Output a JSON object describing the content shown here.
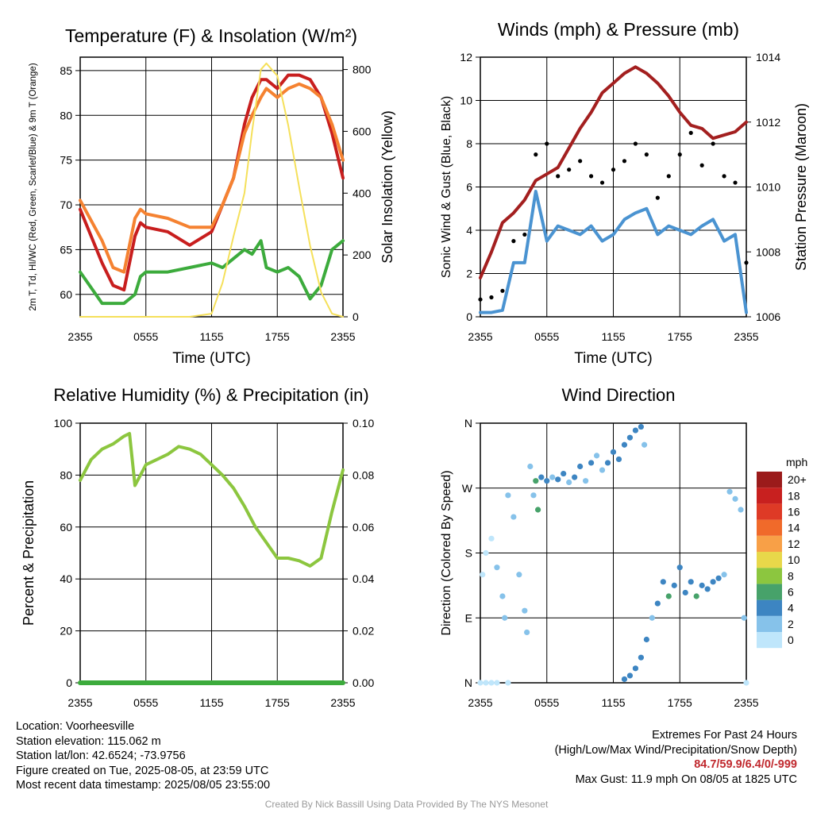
{
  "chart_data": [
    {
      "type": "line",
      "title": "Temperature (F) & Insolation (W/m²)",
      "xlabel": "Time (UTC)",
      "ylabel_left": "2m T, Td, HI/WC (Red, Green, Scarlet/Blue) & 9m T (Orange)",
      "ylabel_right": "Solar Insolation (Yellow)",
      "x_ticks": [
        "2355",
        "0555",
        "1155",
        "1755",
        "2355"
      ],
      "ylim": [
        57.5,
        86.5
      ],
      "y_ticks": [
        60,
        65,
        70,
        75,
        80,
        85
      ],
      "y2lim": [
        0,
        840
      ],
      "y2_ticks": [
        0,
        200,
        400,
        600,
        800
      ],
      "x_hours": [
        0,
        2,
        3,
        4,
        5,
        5.5,
        6,
        8,
        10,
        12,
        13,
        14,
        15,
        15.7,
        16.5,
        17,
        18,
        19,
        20,
        21,
        22,
        23,
        24
      ],
      "series": [
        {
          "color": "#c81e1e",
          "values": [
            69.5,
            63.5,
            61,
            60.5,
            66.5,
            68,
            67.5,
            67,
            65.5,
            67,
            70,
            73,
            79,
            82,
            84,
            84,
            83,
            84.5,
            84.5,
            84,
            82,
            78,
            73
          ]
        },
        {
          "color": "#f58231",
          "values": [
            70.5,
            66,
            63,
            62.5,
            68.5,
            69.5,
            69,
            68.5,
            67.5,
            67.5,
            70,
            73,
            78,
            80,
            82,
            83,
            82,
            83,
            83.5,
            83,
            82,
            79,
            75
          ]
        },
        {
          "color": "#3cab3c",
          "values": [
            62.5,
            59,
            59,
            59,
            60,
            62,
            62.5,
            62.5,
            63,
            63.5,
            63,
            64,
            65,
            64.5,
            66,
            63,
            62.5,
            63,
            62,
            59.5,
            61,
            65,
            66
          ]
        },
        {
          "color": "#f5e05a",
          "values": [
            0,
            0,
            0,
            0,
            0,
            0,
            0,
            0,
            0,
            10,
            110,
            260,
            400,
            600,
            800,
            820,
            780,
            620,
            420,
            230,
            80,
            10,
            0
          ]
        }
      ]
    },
    {
      "type": "line",
      "title": "Winds (mph) & Pressure (mb)",
      "xlabel": "Time (UTC)",
      "ylabel_left": "Sonic Wind & Gust (Blue, Black)",
      "ylabel_right": "Station Pressure (Maroon)",
      "x_ticks": [
        "2355",
        "0555",
        "1155",
        "1755",
        "2355"
      ],
      "ylim": [
        0,
        12
      ],
      "y_ticks": [
        0,
        2,
        4,
        6,
        8,
        10,
        12
      ],
      "y2lim": [
        1006,
        1014
      ],
      "y2_ticks": [
        1006,
        1008,
        1010,
        1012,
        1014
      ],
      "x_hours": [
        0,
        1,
        2,
        3,
        4,
        5,
        6,
        7,
        8,
        9,
        10,
        11,
        12,
        13,
        14,
        15,
        16,
        17,
        18,
        19,
        20,
        21,
        22,
        23,
        24
      ],
      "series": [
        {
          "color": "#4a93d1",
          "values": [
            0.2,
            0.2,
            0.3,
            2.5,
            2.5,
            5.8,
            3.5,
            4.2,
            4,
            3.8,
            4.2,
            3.5,
            3.8,
            4.5,
            4.8,
            5,
            3.8,
            4.2,
            4,
            3.8,
            4.2,
            4.5,
            3.5,
            3.8,
            0.2
          ]
        },
        {
          "color": "#a31f1f",
          "values": [
            1007.2,
            1008,
            1008.9,
            1009.2,
            1009.6,
            1010.2,
            1010.4,
            1010.6,
            1011.2,
            1011.8,
            1012.3,
            1012.9,
            1013.2,
            1013.5,
            1013.7,
            1013.5,
            1013.2,
            1012.8,
            1012.3,
            1011.9,
            1011.8,
            1011.5,
            1011.6,
            1011.7,
            1012
          ]
        },
        {
          "color": "#000000",
          "style": "points",
          "values": [
            0.8,
            0.9,
            1.2,
            3.5,
            3.8,
            7.5,
            8,
            6.5,
            6.8,
            7.2,
            6.5,
            6.2,
            6.8,
            7.2,
            8,
            7.5,
            5.5,
            6.5,
            7.5,
            8.5,
            7,
            8,
            6.5,
            6.2,
            2.5
          ]
        }
      ],
      "annotations": [
        "Max gust 11.9 mph at 1825 UTC"
      ]
    },
    {
      "type": "line",
      "title": "Relative Humidity (%) & Precipitation (in)",
      "xlabel": "",
      "ylabel_left": "Percent & Precipitation",
      "x_ticks": [
        "2355",
        "0555",
        "1155",
        "1755",
        "2355"
      ],
      "ylim": [
        0,
        100
      ],
      "y_ticks": [
        0,
        20,
        40,
        60,
        80,
        100
      ],
      "y2lim": [
        0,
        0.1
      ],
      "y2_ticks": [
        "0.00",
        "0.02",
        "0.04",
        "0.06",
        "0.08",
        "0.10"
      ],
      "x_hours": [
        0,
        1,
        2,
        3,
        4,
        4.5,
        5,
        6,
        7,
        8,
        9,
        10,
        11,
        12,
        13,
        14,
        15,
        16,
        17,
        18,
        19,
        20,
        21,
        22,
        23,
        24
      ],
      "series": [
        {
          "color": "#8cc63f",
          "values": [
            78,
            86,
            90,
            92,
            95,
            96,
            76,
            84,
            86,
            88,
            91,
            90,
            88,
            84,
            80,
            75,
            68,
            60,
            54,
            48,
            48,
            47,
            45,
            48,
            66,
            82
          ]
        },
        {
          "color": "#3cab3c",
          "values": [
            0,
            0,
            0,
            0,
            0,
            0,
            0,
            0,
            0,
            0,
            0,
            0,
            0,
            0,
            0,
            0,
            0,
            0,
            0,
            0,
            0,
            0,
            0,
            0,
            0,
            0
          ]
        }
      ]
    },
    {
      "type": "scatter",
      "title": "Wind Direction",
      "ylabel": "Direction (Colored By Speed)",
      "x_ticks": [
        "2355",
        "0555",
        "1155",
        "1755",
        "2355"
      ],
      "y_ticks": [
        "N",
        "E",
        "S",
        "W",
        "N"
      ],
      "ylim": [
        0,
        360
      ],
      "legend_title": "mph",
      "legend_labels": [
        "0",
        "2",
        "4",
        "6",
        "8",
        "10",
        "12",
        "14",
        "16",
        "18",
        "20+"
      ],
      "legend_colors": [
        "#bfe6fb",
        "#86c2ea",
        "#3d85c2",
        "#47a26a",
        "#8cc63f",
        "#e8d84a",
        "#f8a047",
        "#f06a2a",
        "#de3a26",
        "#c8201f",
        "#9b1b1b"
      ],
      "points": [
        {
          "hour": 0,
          "dir": 0,
          "mph": 0
        },
        {
          "hour": 0.5,
          "dir": 0,
          "mph": 0
        },
        {
          "hour": 1,
          "dir": 0,
          "mph": 0.5
        },
        {
          "hour": 1.5,
          "dir": 0,
          "mph": 0.5
        },
        {
          "hour": 2.5,
          "dir": 0,
          "mph": 0.5
        },
        {
          "hour": 0.2,
          "dir": 150,
          "mph": 0.5
        },
        {
          "hour": 0.5,
          "dir": 180,
          "mph": 0.8
        },
        {
          "hour": 1,
          "dir": 200,
          "mph": 0.8
        },
        {
          "hour": 1.5,
          "dir": 160,
          "mph": 1.2
        },
        {
          "hour": 2,
          "dir": 120,
          "mph": 1.2
        },
        {
          "hour": 2.2,
          "dir": 90,
          "mph": 1.5
        },
        {
          "hour": 2.5,
          "dir": 260,
          "mph": 1.5
        },
        {
          "hour": 3,
          "dir": 230,
          "mph": 1.8
        },
        {
          "hour": 3.5,
          "dir": 150,
          "mph": 2
        },
        {
          "hour": 4,
          "dir": 100,
          "mph": 2
        },
        {
          "hour": 4.2,
          "dir": 70,
          "mph": 1.5
        },
        {
          "hour": 4.5,
          "dir": 300,
          "mph": 2.2
        },
        {
          "hour": 4.8,
          "dir": 260,
          "mph": 2.5
        },
        {
          "hour": 5,
          "dir": 280,
          "mph": 6
        },
        {
          "hour": 5.2,
          "dir": 240,
          "mph": 6
        },
        {
          "hour": 5.5,
          "dir": 285,
          "mph": 3
        },
        {
          "hour": 6,
          "dir": 280,
          "mph": 4
        },
        {
          "hour": 6.5,
          "dir": 285,
          "mph": 2.5
        },
        {
          "hour": 7,
          "dir": 282,
          "mph": 4
        },
        {
          "hour": 7.5,
          "dir": 290,
          "mph": 3
        },
        {
          "hour": 8,
          "dir": 278,
          "mph": 2.5
        },
        {
          "hour": 8.5,
          "dir": 285,
          "mph": 4
        },
        {
          "hour": 9,
          "dir": 300,
          "mph": 3
        },
        {
          "hour": 9.5,
          "dir": 280,
          "mph": 2.2
        },
        {
          "hour": 10,
          "dir": 305,
          "mph": 3
        },
        {
          "hour": 10.5,
          "dir": 315,
          "mph": 2
        },
        {
          "hour": 11,
          "dir": 295,
          "mph": 2.5
        },
        {
          "hour": 11.5,
          "dir": 305,
          "mph": 3.5
        },
        {
          "hour": 12,
          "dir": 320,
          "mph": 4
        },
        {
          "hour": 12.5,
          "dir": 310,
          "mph": 3.5
        },
        {
          "hour": 13,
          "dir": 330,
          "mph": 4
        },
        {
          "hour": 13.5,
          "dir": 340,
          "mph": 3.5
        },
        {
          "hour": 14,
          "dir": 350,
          "mph": 4
        },
        {
          "hour": 14.5,
          "dir": 355,
          "mph": 3
        },
        {
          "hour": 14.8,
          "dir": 330,
          "mph": 2.5
        },
        {
          "hour": 13,
          "dir": 5,
          "mph": 4
        },
        {
          "hour": 13.5,
          "dir": 10,
          "mph": 4
        },
        {
          "hour": 14,
          "dir": 20,
          "mph": 3.5
        },
        {
          "hour": 14.5,
          "dir": 35,
          "mph": 3
        },
        {
          "hour": 15,
          "dir": 60,
          "mph": 3
        },
        {
          "hour": 15.5,
          "dir": 90,
          "mph": 2.5
        },
        {
          "hour": 16,
          "dir": 110,
          "mph": 3.5
        },
        {
          "hour": 16.5,
          "dir": 140,
          "mph": 3
        },
        {
          "hour": 17,
          "dir": 120,
          "mph": 6
        },
        {
          "hour": 17.5,
          "dir": 135,
          "mph": 4
        },
        {
          "hour": 18,
          "dir": 160,
          "mph": 3
        },
        {
          "hour": 18.5,
          "dir": 125,
          "mph": 3.5
        },
        {
          "hour": 19,
          "dir": 140,
          "mph": 4
        },
        {
          "hour": 19.5,
          "dir": 120,
          "mph": 6
        },
        {
          "hour": 20,
          "dir": 135,
          "mph": 4.5
        },
        {
          "hour": 20.5,
          "dir": 130,
          "mph": 4
        },
        {
          "hour": 21,
          "dir": 140,
          "mph": 3.5
        },
        {
          "hour": 21.5,
          "dir": 145,
          "mph": 3
        },
        {
          "hour": 22,
          "dir": 150,
          "mph": 2.5
        },
        {
          "hour": 22.5,
          "dir": 265,
          "mph": 2
        },
        {
          "hour": 23,
          "dir": 255,
          "mph": 1.5
        },
        {
          "hour": 23.5,
          "dir": 240,
          "mph": 1.5
        },
        {
          "hour": 23.8,
          "dir": 90,
          "mph": 1
        },
        {
          "hour": 24,
          "dir": 0,
          "mph": 0
        }
      ]
    }
  ],
  "footer": {
    "location": "Location: Voorheesville",
    "elevation": "Station elevation: 115.062 m",
    "latlon": "Station lat/lon: 42.6524; -73.9756",
    "created": "Figure created on Tue, 2025-08-05, at 23:59 UTC",
    "recent": "Most recent data timestamp: 2025/08/05 23:55:00",
    "extremes_title": "Extremes For Past 24 Hours",
    "extremes_legend": "(High/Low/Max Wind/Precipitation/Snow Depth)",
    "extremes_values": "84.7/59.9/6.4/0/-999",
    "max_gust": "Max Gust: 11.9 mph On 08/05 at 1825 UTC",
    "credit": "Created By Nick Bassill Using Data Provided By The NYS Mesonet"
  }
}
